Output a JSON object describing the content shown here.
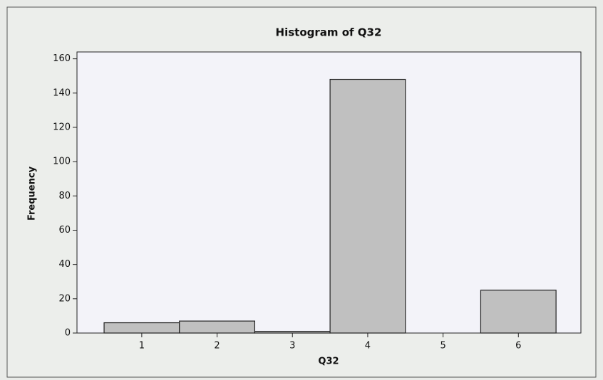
{
  "chart_data": {
    "type": "histogram",
    "title": "Histogram of Q32",
    "x_label": "Q32",
    "y_label": "Frequency",
    "bins": [
      0.5,
      1.5,
      2.5,
      3.5,
      4.5,
      5.5,
      6.5
    ],
    "values": [
      6,
      7,
      1,
      148,
      0,
      25
    ],
    "color": "#c0c0c0",
    "edge_color": "#222222",
    "xlim": [
      0.14,
      6.83
    ],
    "xticks": [
      1,
      2,
      3,
      4,
      5,
      6
    ],
    "ylim": [
      0,
      164
    ],
    "yticks": [
      0,
      20,
      40,
      60,
      80,
      100,
      120,
      140,
      160
    ]
  }
}
